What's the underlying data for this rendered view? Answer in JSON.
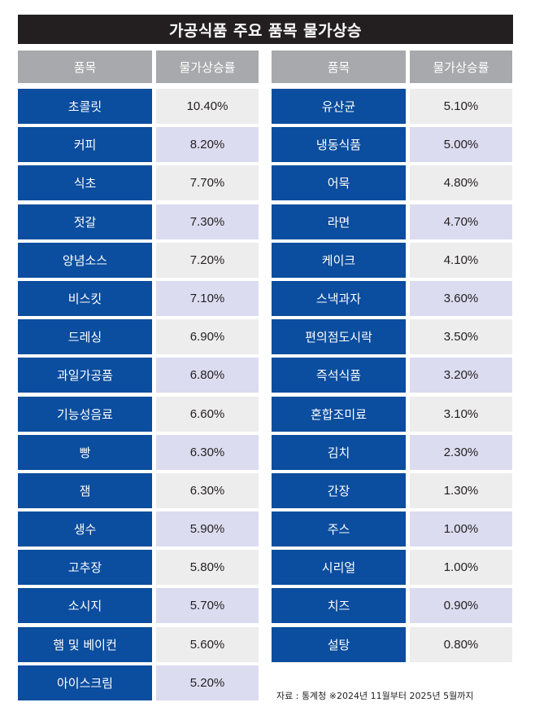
{
  "title": "가공식품 주요 품목 물가상승",
  "headers": {
    "item": "품목",
    "rate": "물가상승률"
  },
  "left_rows": [
    {
      "item": "초콜릿",
      "rate": "10.40%"
    },
    {
      "item": "커피",
      "rate": "8.20%"
    },
    {
      "item": "식초",
      "rate": "7.70%"
    },
    {
      "item": "젓갈",
      "rate": "7.30%"
    },
    {
      "item": "양념소스",
      "rate": "7.20%"
    },
    {
      "item": "비스킷",
      "rate": "7.10%"
    },
    {
      "item": "드레싱",
      "rate": "6.90%"
    },
    {
      "item": "과일가공품",
      "rate": "6.80%"
    },
    {
      "item": "기능성음료",
      "rate": "6.60%"
    },
    {
      "item": "빵",
      "rate": "6.30%"
    },
    {
      "item": "잼",
      "rate": "6.30%"
    },
    {
      "item": "생수",
      "rate": "5.90%"
    },
    {
      "item": "고추장",
      "rate": "5.80%"
    },
    {
      "item": "소시지",
      "rate": "5.70%"
    },
    {
      "item": "햄 및 베이컨",
      "rate": "5.60%"
    },
    {
      "item": "아이스크림",
      "rate": "5.20%"
    }
  ],
  "right_rows": [
    {
      "item": "유산균",
      "rate": "5.10%"
    },
    {
      "item": "냉동식품",
      "rate": "5.00%"
    },
    {
      "item": "어묵",
      "rate": "4.80%"
    },
    {
      "item": "라면",
      "rate": "4.70%"
    },
    {
      "item": "케이크",
      "rate": "4.10%"
    },
    {
      "item": "스낵과자",
      "rate": "3.60%"
    },
    {
      "item": "편의점도시락",
      "rate": "3.50%"
    },
    {
      "item": "즉석식품",
      "rate": "3.20%"
    },
    {
      "item": "혼합조미료",
      "rate": "3.10%"
    },
    {
      "item": "김치",
      "rate": "2.30%"
    },
    {
      "item": "간장",
      "rate": "1.30%"
    },
    {
      "item": "주스",
      "rate": "1.00%"
    },
    {
      "item": "시리얼",
      "rate": "1.00%"
    },
    {
      "item": "치즈",
      "rate": "0.90%"
    },
    {
      "item": "설탕",
      "rate": "0.80%"
    }
  ],
  "source": "자료 : 통계청 ※2024년 11월부터 2025년 5월까지",
  "colors": {
    "title_bg": "#231f20",
    "header_bg": "#a7a9ac",
    "item_bg": "#0b4d9e",
    "rate_bg_a": "#ededed",
    "rate_bg_b": "#dcdcf0"
  }
}
